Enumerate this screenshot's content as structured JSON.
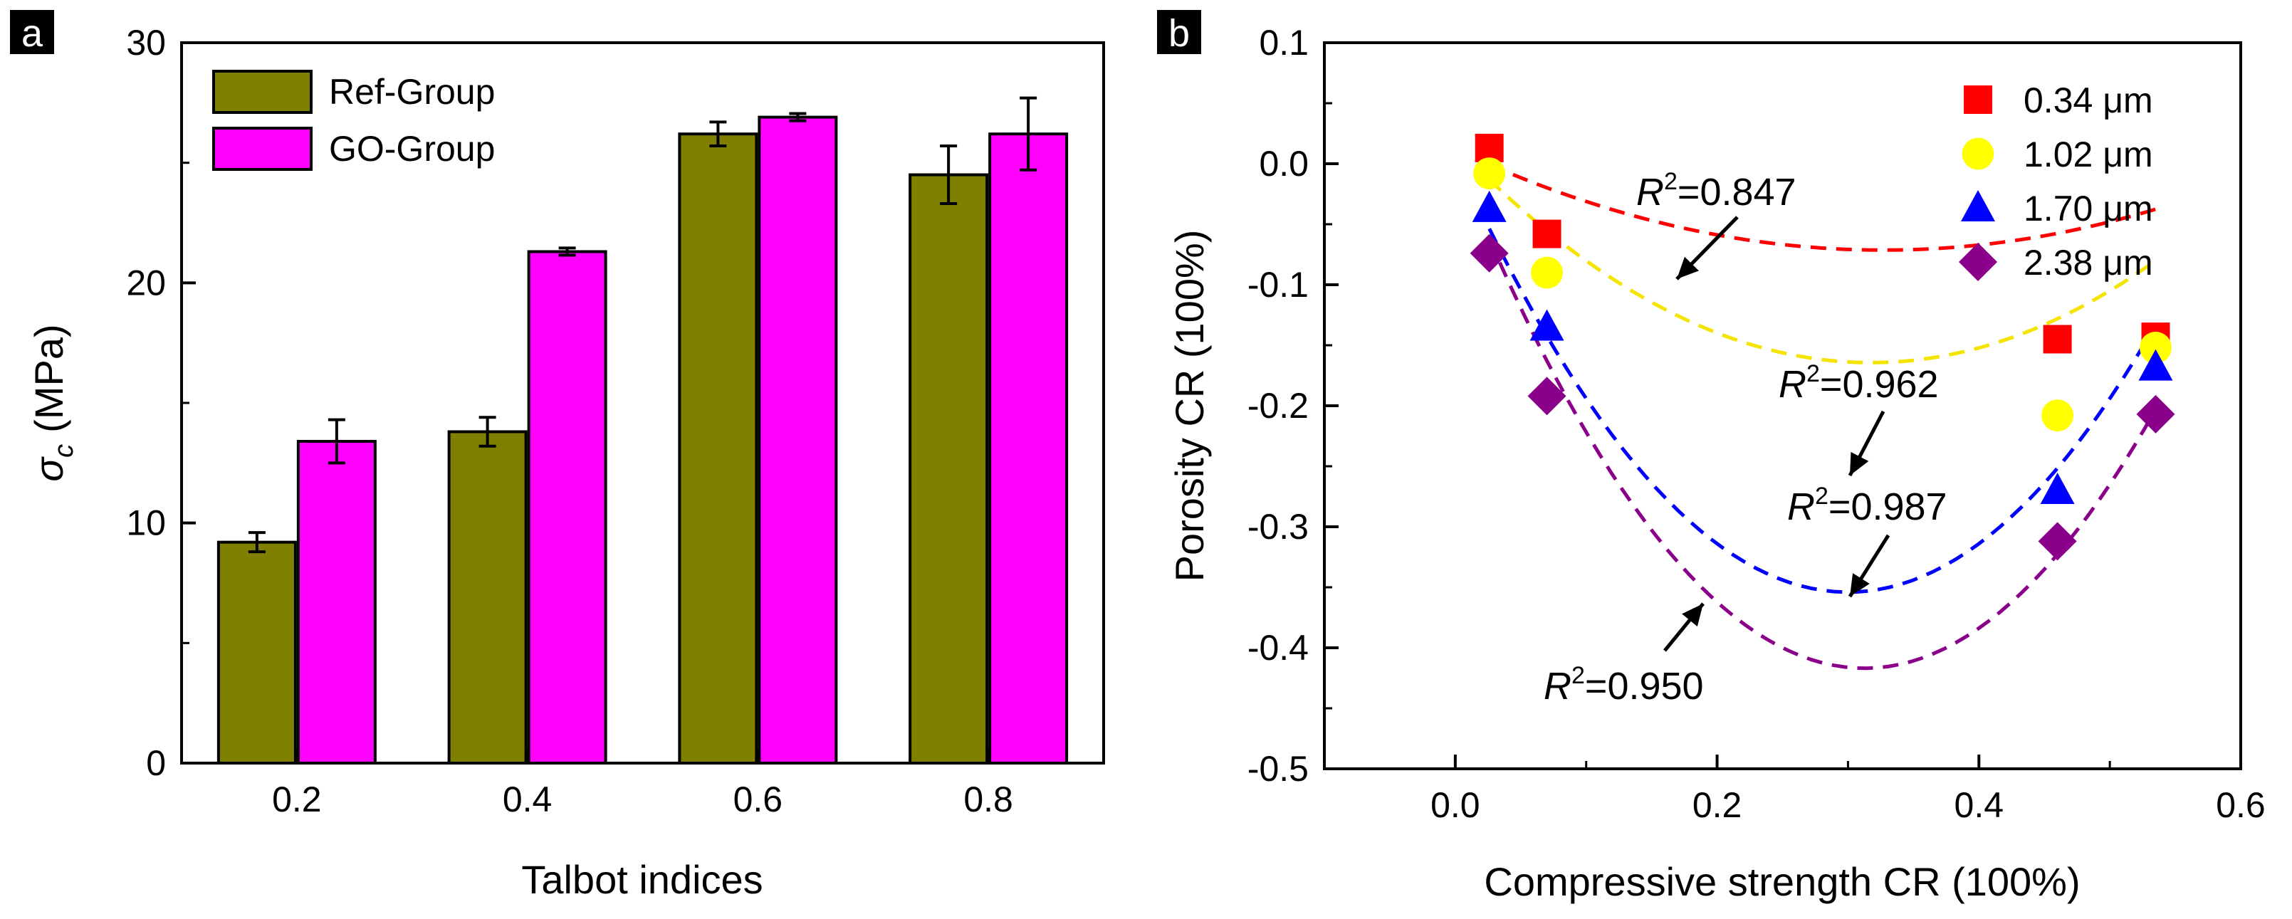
{
  "chart_data": [
    {
      "panel": "a",
      "type": "bar",
      "categories": [
        "0.2",
        "0.4",
        "0.6",
        "0.8"
      ],
      "series": [
        {
          "name": "Ref-Group",
          "color": "#808000",
          "values": [
            9.2,
            13.8,
            26.2,
            24.5
          ],
          "errors": [
            0.4,
            0.6,
            0.5,
            1.2
          ]
        },
        {
          "name": "GO-Group",
          "color": "#ff00ff",
          "values": [
            13.4,
            21.3,
            26.9,
            26.2
          ],
          "errors": [
            0.9,
            0.15,
            0.15,
            1.5
          ]
        }
      ],
      "xlabel": "Talbot indices",
      "ylabel_symbol": "σ",
      "ylabel_sub": "c",
      "ylabel_unit": "(MPa)",
      "ylim": [
        0,
        30
      ],
      "yticks": [
        "0",
        "10",
        "20",
        "30"
      ],
      "legend_position": "top-left"
    },
    {
      "panel": "b",
      "type": "scatter",
      "xlabel": "Compressive strength CR (100%)",
      "ylabel": "Porosity CR (100%)",
      "xlim": [
        -0.1,
        0.6
      ],
      "ylim": [
        -0.5,
        0.1
      ],
      "xticks": [
        "0.0",
        "0.2",
        "0.4",
        "0.6"
      ],
      "yticks": [
        "0.1",
        "0.0",
        "-0.1",
        "-0.2",
        "-0.3",
        "-0.4",
        "-0.5"
      ],
      "legend_position": "top-right",
      "series": [
        {
          "name": "0.34 μm",
          "marker": "square",
          "color": "#ff0000",
          "x": [
            0.026,
            0.07,
            0.46,
            0.535
          ],
          "y": [
            0.013,
            -0.058,
            -0.145,
            -0.143
          ],
          "fit": [
            0.012,
            -0.51,
            0.78
          ],
          "r2_base": "R",
          "r2_sup": "2",
          "r2_value": "=0.847"
        },
        {
          "name": "1.02 μm",
          "marker": "circle",
          "color": "#ffff00",
          "x": [
            0.026,
            0.07,
            0.46,
            0.535
          ],
          "y": [
            -0.008,
            -0.09,
            -0.208,
            -0.152
          ],
          "fit": [
            0.015,
            -1.13,
            1.78
          ],
          "r2_base": "R",
          "r2_sup": "2",
          "r2_value": "=0.962"
        },
        {
          "name": "1.70 μm",
          "marker": "triangle",
          "color": "#0000ff",
          "x": [
            0.026,
            0.07,
            0.46,
            0.535
          ],
          "y": [
            -0.037,
            -0.135,
            -0.27,
            -0.168
          ],
          "fit": [
            0.006,
            -2.4,
            4.0
          ],
          "r2_base": "R",
          "r2_sup": "2",
          "r2_value": "=0.987"
        },
        {
          "name": "2.38 μm",
          "marker": "diamond",
          "color": "#8b008b",
          "x": [
            0.026,
            0.07,
            0.46,
            0.535
          ],
          "y": [
            -0.074,
            -0.192,
            -0.312,
            -0.207
          ],
          "fit": [
            0.005,
            -2.7,
            4.32
          ],
          "r2_base": "R",
          "r2_sup": "2",
          "r2_value": "=0.950"
        }
      ]
    }
  ]
}
